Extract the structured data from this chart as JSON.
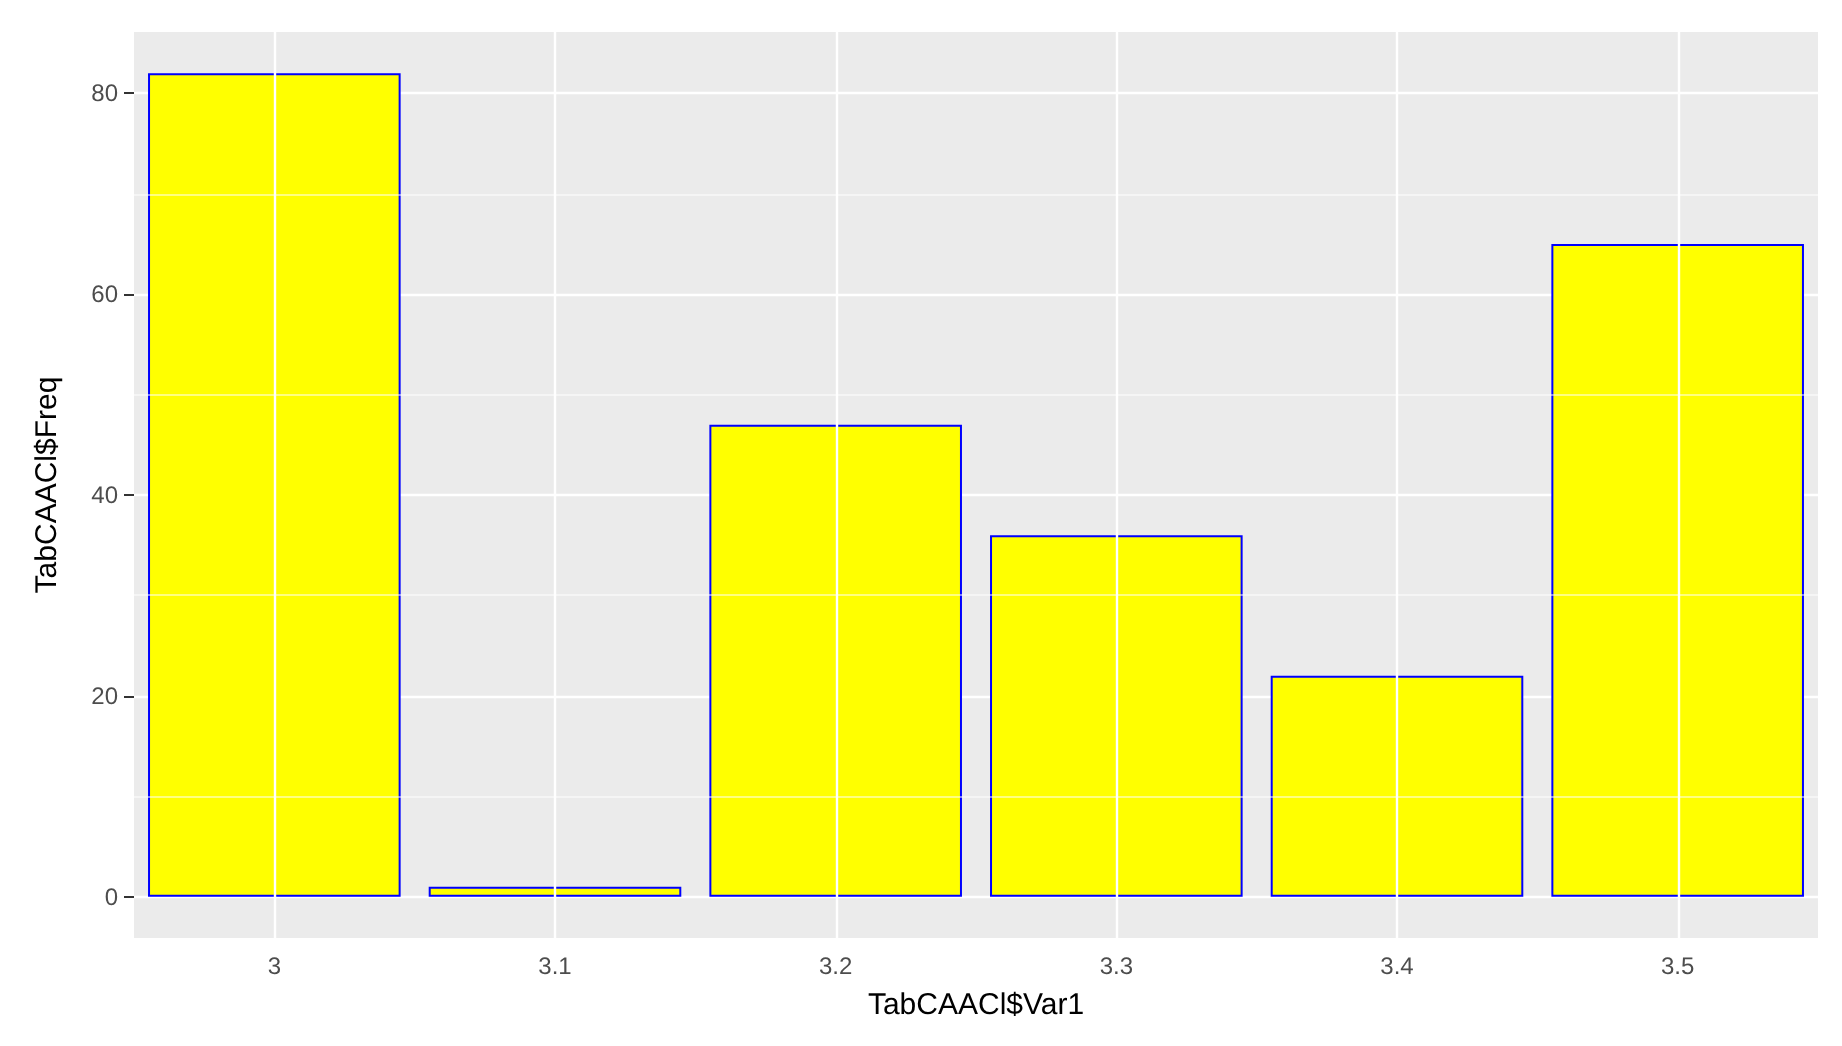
{
  "chart_data": {
    "type": "bar",
    "xlabel": "TabCAACl$Var1",
    "ylabel": "TabCAACl$Freq",
    "categories": [
      "3",
      "3.1",
      "3.2",
      "3.3",
      "3.4",
      "3.5"
    ],
    "values": [
      82,
      1,
      47,
      36,
      22,
      65
    ],
    "color": "#ffff00",
    "ylim": [
      -4.1,
      86.1
    ],
    "yticks": [
      0,
      20,
      40,
      60,
      80
    ],
    "grid": true
  }
}
